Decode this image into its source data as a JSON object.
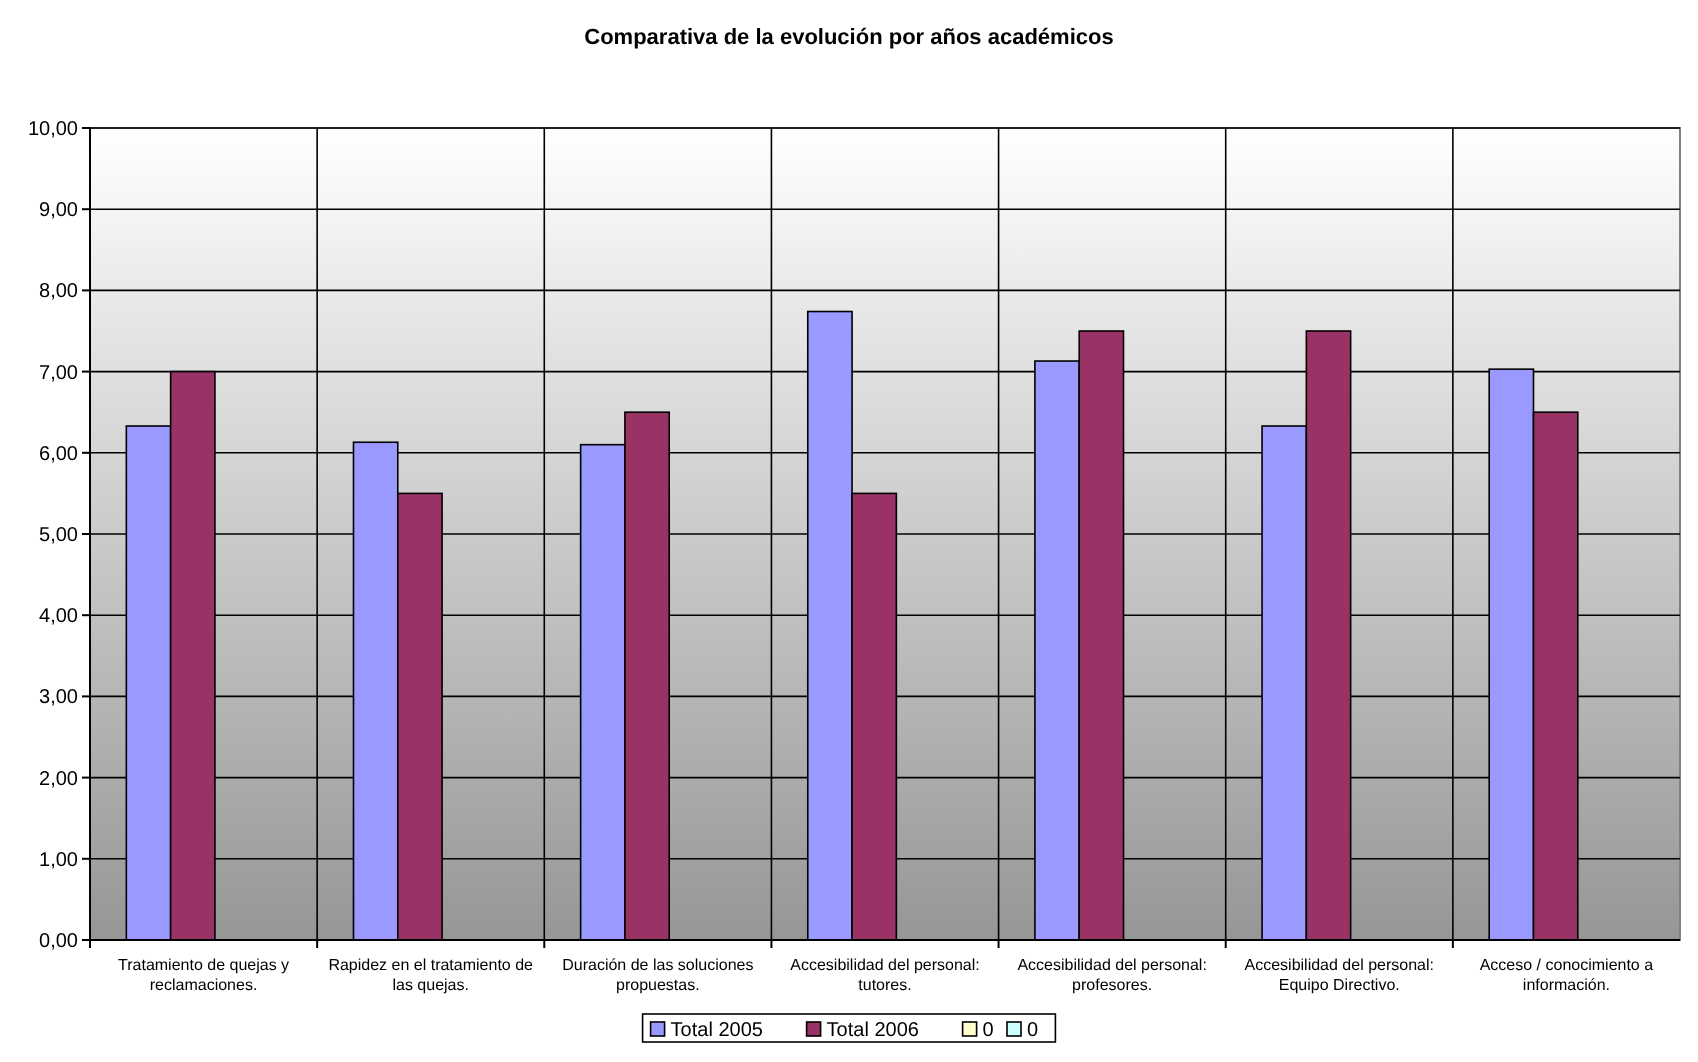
{
  "chart_data": {
    "type": "bar",
    "title": "Comparativa de la evolución por años académicos",
    "categories": [
      "Tratamiento de quejas y reclamaciones.",
      "Rapidez en el tratamiento de las quejas.",
      "Duración de las soluciones propuestas.",
      "Accesibilidad del personal: tutores.",
      "Accesibilidad del personal: profesores.",
      "Accesibilidad del personal: Equipo Directivo.",
      "Acceso / conocimiento a información."
    ],
    "series": [
      {
        "name": "Total 2005",
        "color": "#9999ff",
        "values": [
          6.33,
          6.13,
          6.1,
          7.74,
          7.13,
          6.33,
          7.03
        ]
      },
      {
        "name": "Total 2006",
        "color": "#993366",
        "values": [
          7.0,
          5.5,
          6.5,
          5.5,
          7.5,
          7.5,
          6.5
        ]
      },
      {
        "name": "0",
        "color": "#ffffcc",
        "values": [
          null,
          null,
          null,
          null,
          null,
          null,
          null
        ]
      },
      {
        "name": "0",
        "color": "#ccffff",
        "values": [
          null,
          null,
          null,
          null,
          null,
          null,
          null
        ]
      }
    ],
    "ylim": [
      0,
      10
    ],
    "yticks": [
      {
        "value": 0,
        "label": "0,00"
      },
      {
        "value": 1,
        "label": "1,00"
      },
      {
        "value": 2,
        "label": "2,00"
      },
      {
        "value": 3,
        "label": "3,00"
      },
      {
        "value": 4,
        "label": "4,00"
      },
      {
        "value": 5,
        "label": "5,00"
      },
      {
        "value": 6,
        "label": "6,00"
      },
      {
        "value": 7,
        "label": "7,00"
      },
      {
        "value": 8,
        "label": "8,00"
      },
      {
        "value": 9,
        "label": "9,00"
      },
      {
        "value": 10,
        "label": "10,00"
      }
    ],
    "grid": true,
    "legend": "bottom"
  }
}
